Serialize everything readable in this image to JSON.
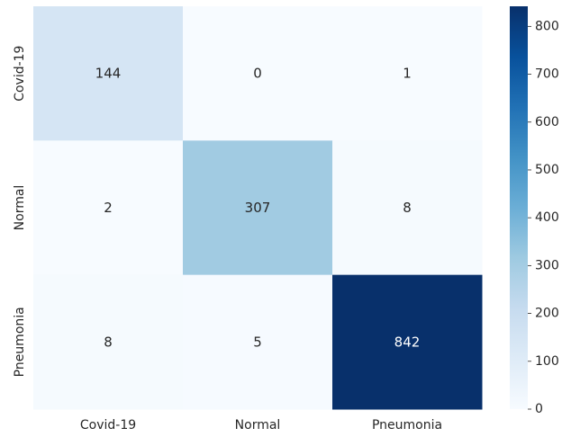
{
  "chart_data": {
    "type": "heatmap",
    "title": "",
    "xlabel": "",
    "ylabel": "",
    "x_categories": [
      "Covid-19",
      "Normal",
      "Pneumonia"
    ],
    "y_categories": [
      "Covid-19",
      "Normal",
      "Pneumonia"
    ],
    "values": [
      [
        144,
        0,
        1
      ],
      [
        2,
        307,
        8
      ],
      [
        8,
        5,
        842
      ]
    ],
    "colorbar": {
      "range": [
        0,
        842
      ],
      "ticks": [
        0,
        100,
        200,
        300,
        400,
        500,
        600,
        700,
        800
      ],
      "colormap": "Blues"
    },
    "colors": {
      "low": "#f7fbff",
      "high": "#08306b",
      "text_dark": "#262626",
      "text_light": "#ffffff"
    }
  }
}
